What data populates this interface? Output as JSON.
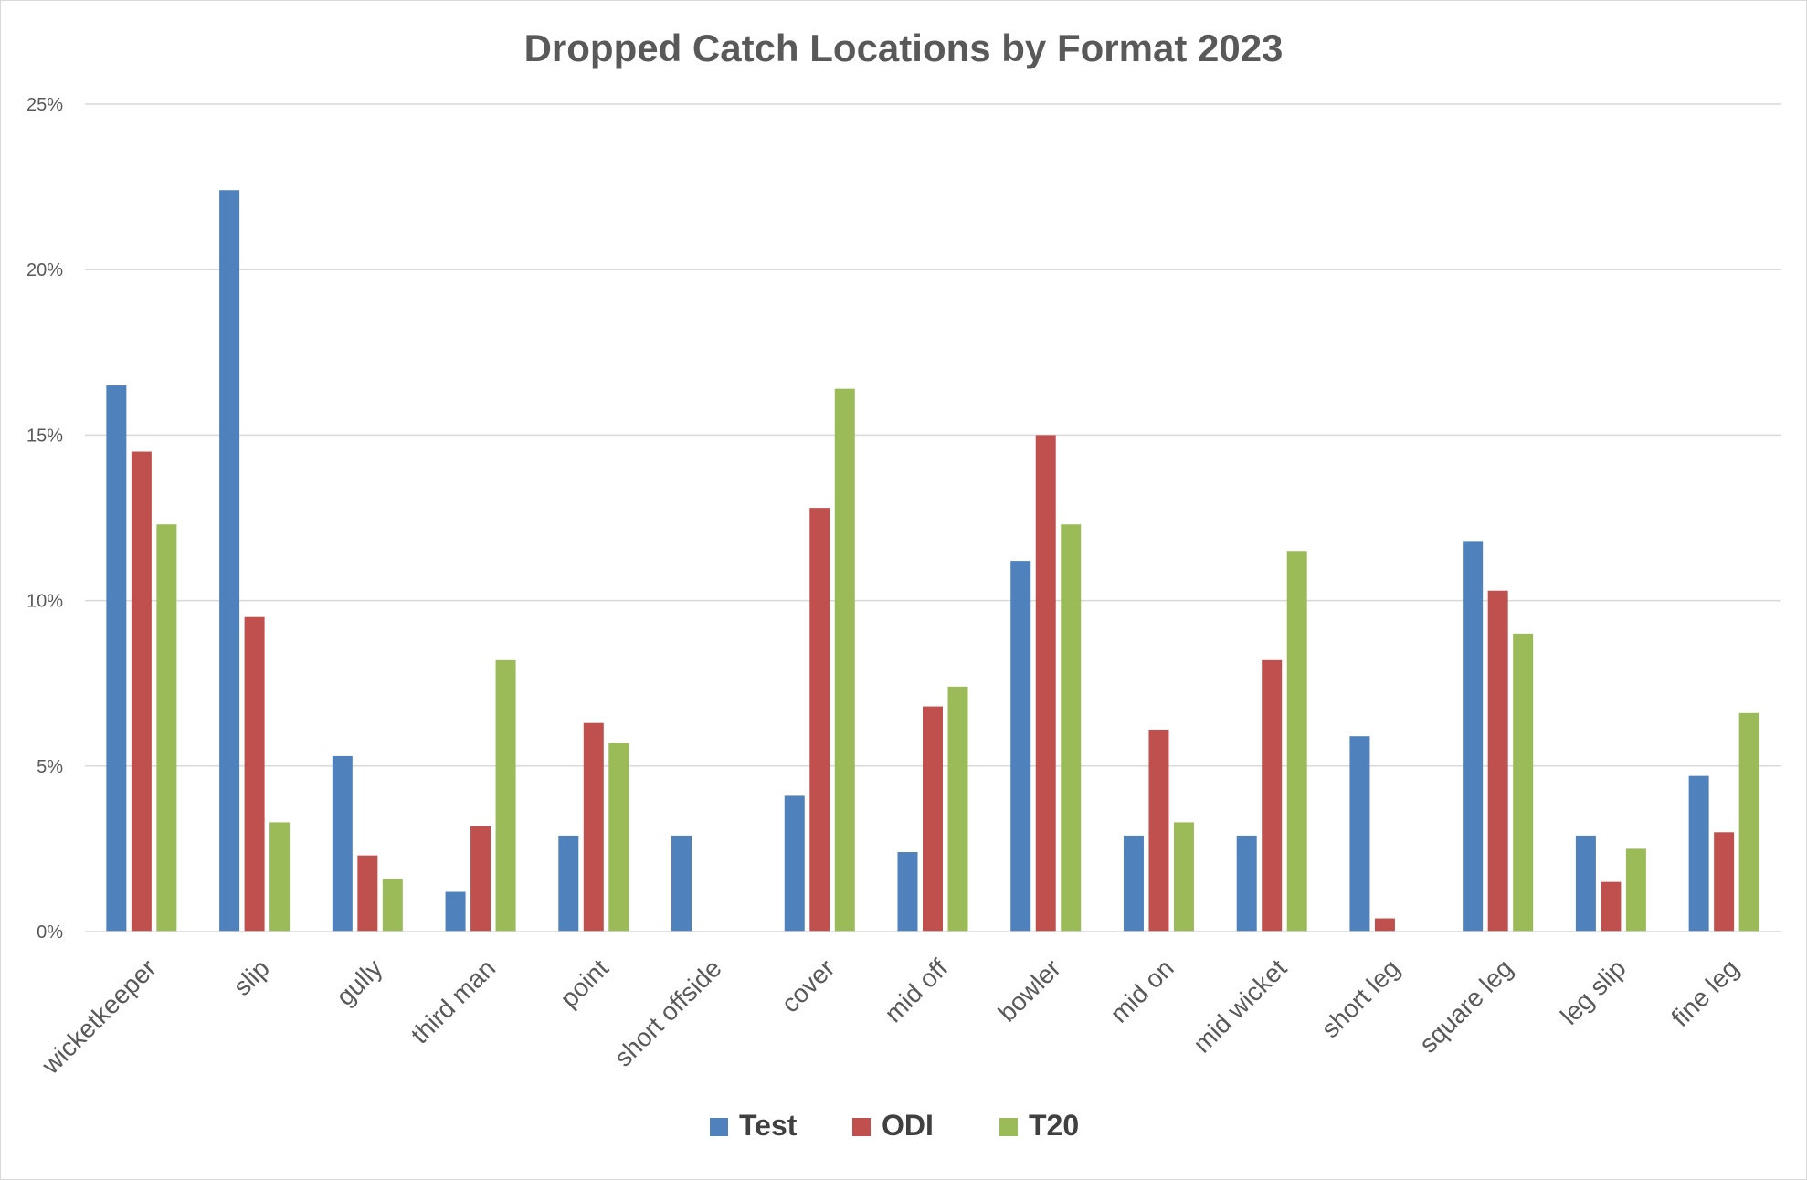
{
  "chart_data": {
    "type": "bar",
    "title": "Dropped Catch Locations by Format 2023",
    "xlabel": "",
    "ylabel": "",
    "ylim": [
      0,
      25
    ],
    "yticks": [
      0,
      5,
      10,
      15,
      20,
      25
    ],
    "ytick_labels": [
      "0%",
      "5%",
      "10%",
      "15%",
      "20%",
      "25%"
    ],
    "grid": true,
    "legend_position": "bottom",
    "categories": [
      "wicketkeeper",
      "slip",
      "gully",
      "third man",
      "point",
      "short offside",
      "cover",
      "mid off",
      "bowler",
      "mid on",
      "mid wicket",
      "short leg",
      "square leg",
      "leg slip",
      "fine leg"
    ],
    "series": [
      {
        "name": "Test",
        "color": "#4f81bd",
        "values": [
          16.5,
          22.4,
          5.3,
          1.2,
          2.9,
          2.9,
          4.1,
          2.4,
          11.2,
          2.9,
          2.9,
          5.9,
          11.8,
          2.9,
          4.7
        ]
      },
      {
        "name": "ODI",
        "color": "#c0504d",
        "values": [
          14.5,
          9.5,
          2.3,
          3.2,
          6.3,
          0,
          12.8,
          6.8,
          15.0,
          6.1,
          8.2,
          0.4,
          10.3,
          1.5,
          3.0
        ]
      },
      {
        "name": "T20",
        "color": "#9bbb59",
        "values": [
          12.3,
          3.3,
          1.6,
          8.2,
          5.7,
          0,
          16.4,
          7.4,
          12.3,
          3.3,
          11.5,
          0,
          9.0,
          2.5,
          6.6
        ]
      }
    ]
  }
}
